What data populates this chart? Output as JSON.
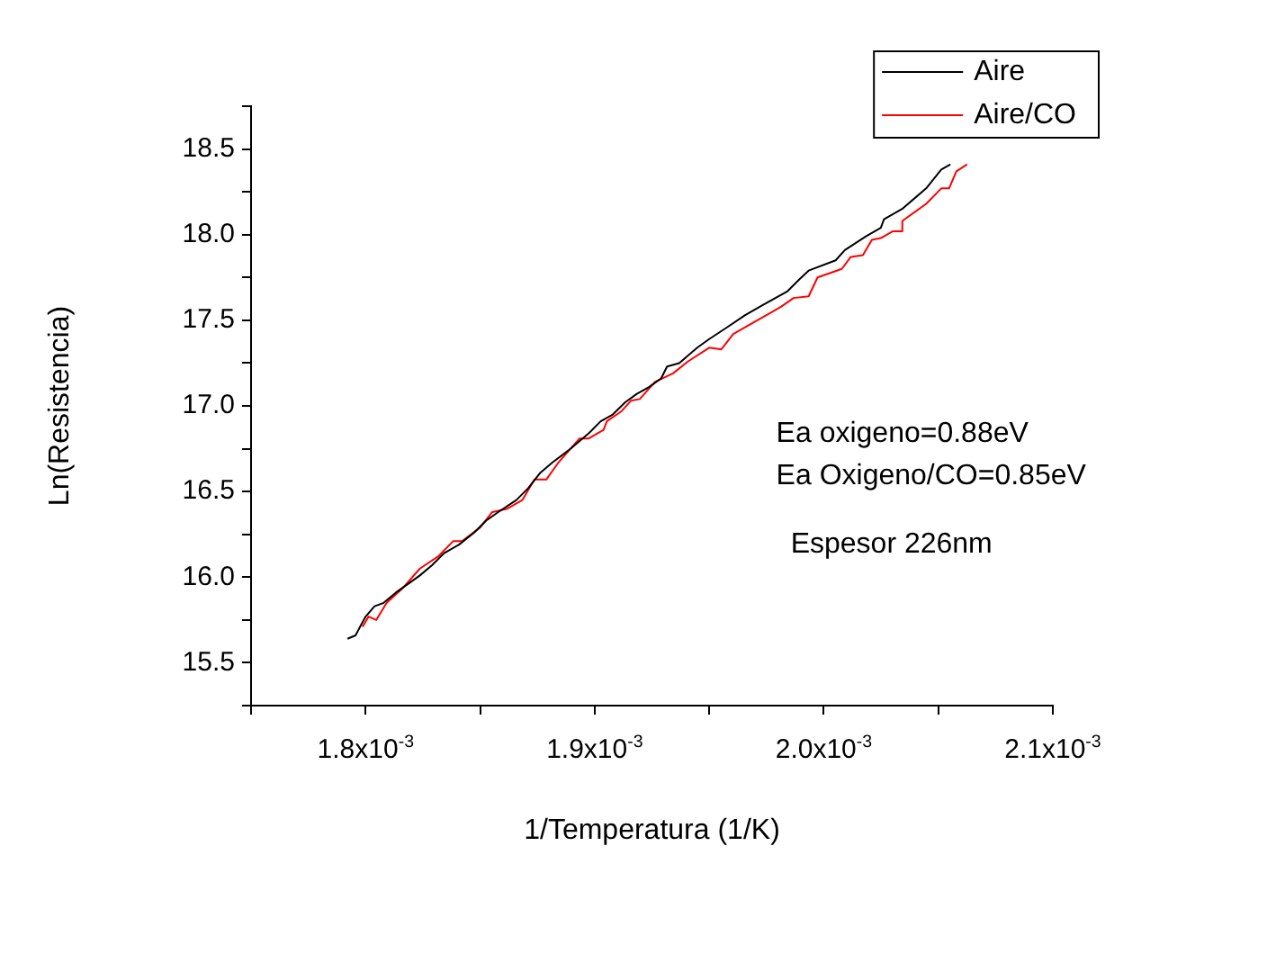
{
  "chart_data": {
    "type": "line",
    "xlabel": "1/Temperatura (1/K)",
    "ylabel": "Ln(Resistencia)",
    "xlim": [
      0.00175,
      0.0021
    ],
    "xticks": [
      {
        "value": 0.00175,
        "label": null
      },
      {
        "value": 0.0018,
        "label": "1.8x10$^{-3}$"
      },
      {
        "value": 0.00185,
        "label": null
      },
      {
        "value": 0.0019,
        "label": "1.9x10$^{-3}$"
      },
      {
        "value": 0.00195,
        "label": null
      },
      {
        "value": 0.002,
        "label": "2.0x10$^{-3}$"
      },
      {
        "value": 0.00205,
        "label": null
      },
      {
        "value": 0.0021,
        "label": "2.1x10$^{-3}$"
      }
    ],
    "ylim": [
      15.25,
      18.75
    ],
    "yticks": [
      {
        "value": 15.25,
        "label": null
      },
      15.5,
      {
        "value": 15.75,
        "label": null
      },
      {
        "value": 16,
        "label": "16.0"
      },
      {
        "value": 16.25,
        "label": null
      },
      16.5,
      {
        "value": 16.75,
        "label": null
      },
      {
        "value": 17,
        "label": "17.0"
      },
      {
        "value": 17.25,
        "label": null
      },
      17.5,
      {
        "value": 17.75,
        "label": null
      },
      {
        "value": 18,
        "label": "18.0"
      },
      {
        "value": 18.25,
        "label": null
      },
      18.5,
      {
        "value": 18.75,
        "label": null
      }
    ],
    "grid": false,
    "legend": "top right",
    "marker": "none",
    "line_style": "solid",
    "series": [
      {
        "name": "Aire",
        "color": "#000000",
        "x": [
          0.0017921,
          0.0017956,
          0.0018,
          0.0018039,
          0.0018079,
          0.0018132,
          0.0018185,
          0.0018237,
          0.001829,
          0.0018343,
          0.0018408,
          0.0018474,
          0.0018526,
          0.0018579,
          0.0018658,
          0.001871,
          0.0018763,
          0.0018816,
          0.0018895,
          0.0018974,
          0.0019026,
          0.0019079,
          0.0019132,
          0.0019184,
          0.0019237,
          0.001929,
          0.0019316,
          0.0019369,
          0.0019448,
          0.00195,
          0.0019579,
          0.0019657,
          0.0019736,
          0.0019842,
          0.0019894,
          0.0019934,
          0.0020052,
          0.0020092,
          0.0020184,
          0.0020249,
          0.0020263,
          0.0020342,
          0.0020447,
          0.0020513,
          0.0020553
        ],
        "values": [
          15.64,
          15.66,
          15.77,
          15.83,
          15.85,
          15.91,
          15.96,
          16.01,
          16.07,
          16.14,
          16.19,
          16.26,
          16.33,
          16.38,
          16.45,
          16.52,
          16.61,
          16.67,
          16.75,
          16.84,
          16.91,
          16.95,
          17.02,
          17.07,
          17.11,
          17.16,
          17.23,
          17.25,
          17.34,
          17.39,
          17.46,
          17.53,
          17.59,
          17.67,
          17.74,
          17.79,
          17.85,
          17.91,
          17.99,
          18.04,
          18.09,
          18.15,
          18.27,
          18.38,
          18.41
        ]
      },
      {
        "name": "Aire/CO",
        "color": "#ff0000",
        "x": [
          0.0017987,
          0.0018013,
          0.0018047,
          0.0018092,
          0.0018158,
          0.0018237,
          0.0018316,
          0.0018382,
          0.0018421,
          0.00185,
          0.0018553,
          0.0018619,
          0.0018684,
          0.0018737,
          0.0018789,
          0.0018842,
          0.0018934,
          0.0018974,
          0.0019039,
          0.0019053,
          0.0019118,
          0.0019158,
          0.0019197,
          0.0019263,
          0.0019342,
          0.0019408,
          0.00195,
          0.0019553,
          0.0019605,
          0.0019684,
          0.001975,
          0.0019815,
          0.0019868,
          0.0019934,
          0.0019973,
          0.0020079,
          0.0020118,
          0.0020171,
          0.002021,
          0.0020249,
          0.0020302,
          0.0020342,
          0.0020343,
          0.0020447,
          0.0020513,
          0.0020547,
          0.0020579,
          0.0020626
        ],
        "values": [
          15.71,
          15.77,
          15.75,
          15.85,
          15.93,
          16.05,
          16.12,
          16.21,
          16.21,
          16.29,
          16.38,
          16.4,
          16.45,
          16.57,
          16.57,
          16.67,
          16.81,
          16.81,
          16.86,
          16.91,
          16.97,
          17.03,
          17.04,
          17.14,
          17.19,
          17.26,
          17.34,
          17.33,
          17.42,
          17.48,
          17.53,
          17.58,
          17.63,
          17.64,
          17.75,
          17.8,
          17.87,
          17.88,
          17.97,
          17.98,
          18.02,
          18.02,
          18.08,
          18.18,
          18.27,
          18.27,
          18.37,
          18.41
        ]
      }
    ],
    "annotations": [
      "Ea oxigeno=0.88eV",
      "Ea Oxigeno/CO=0.85eV",
      "Espesor 226nm"
    ]
  }
}
